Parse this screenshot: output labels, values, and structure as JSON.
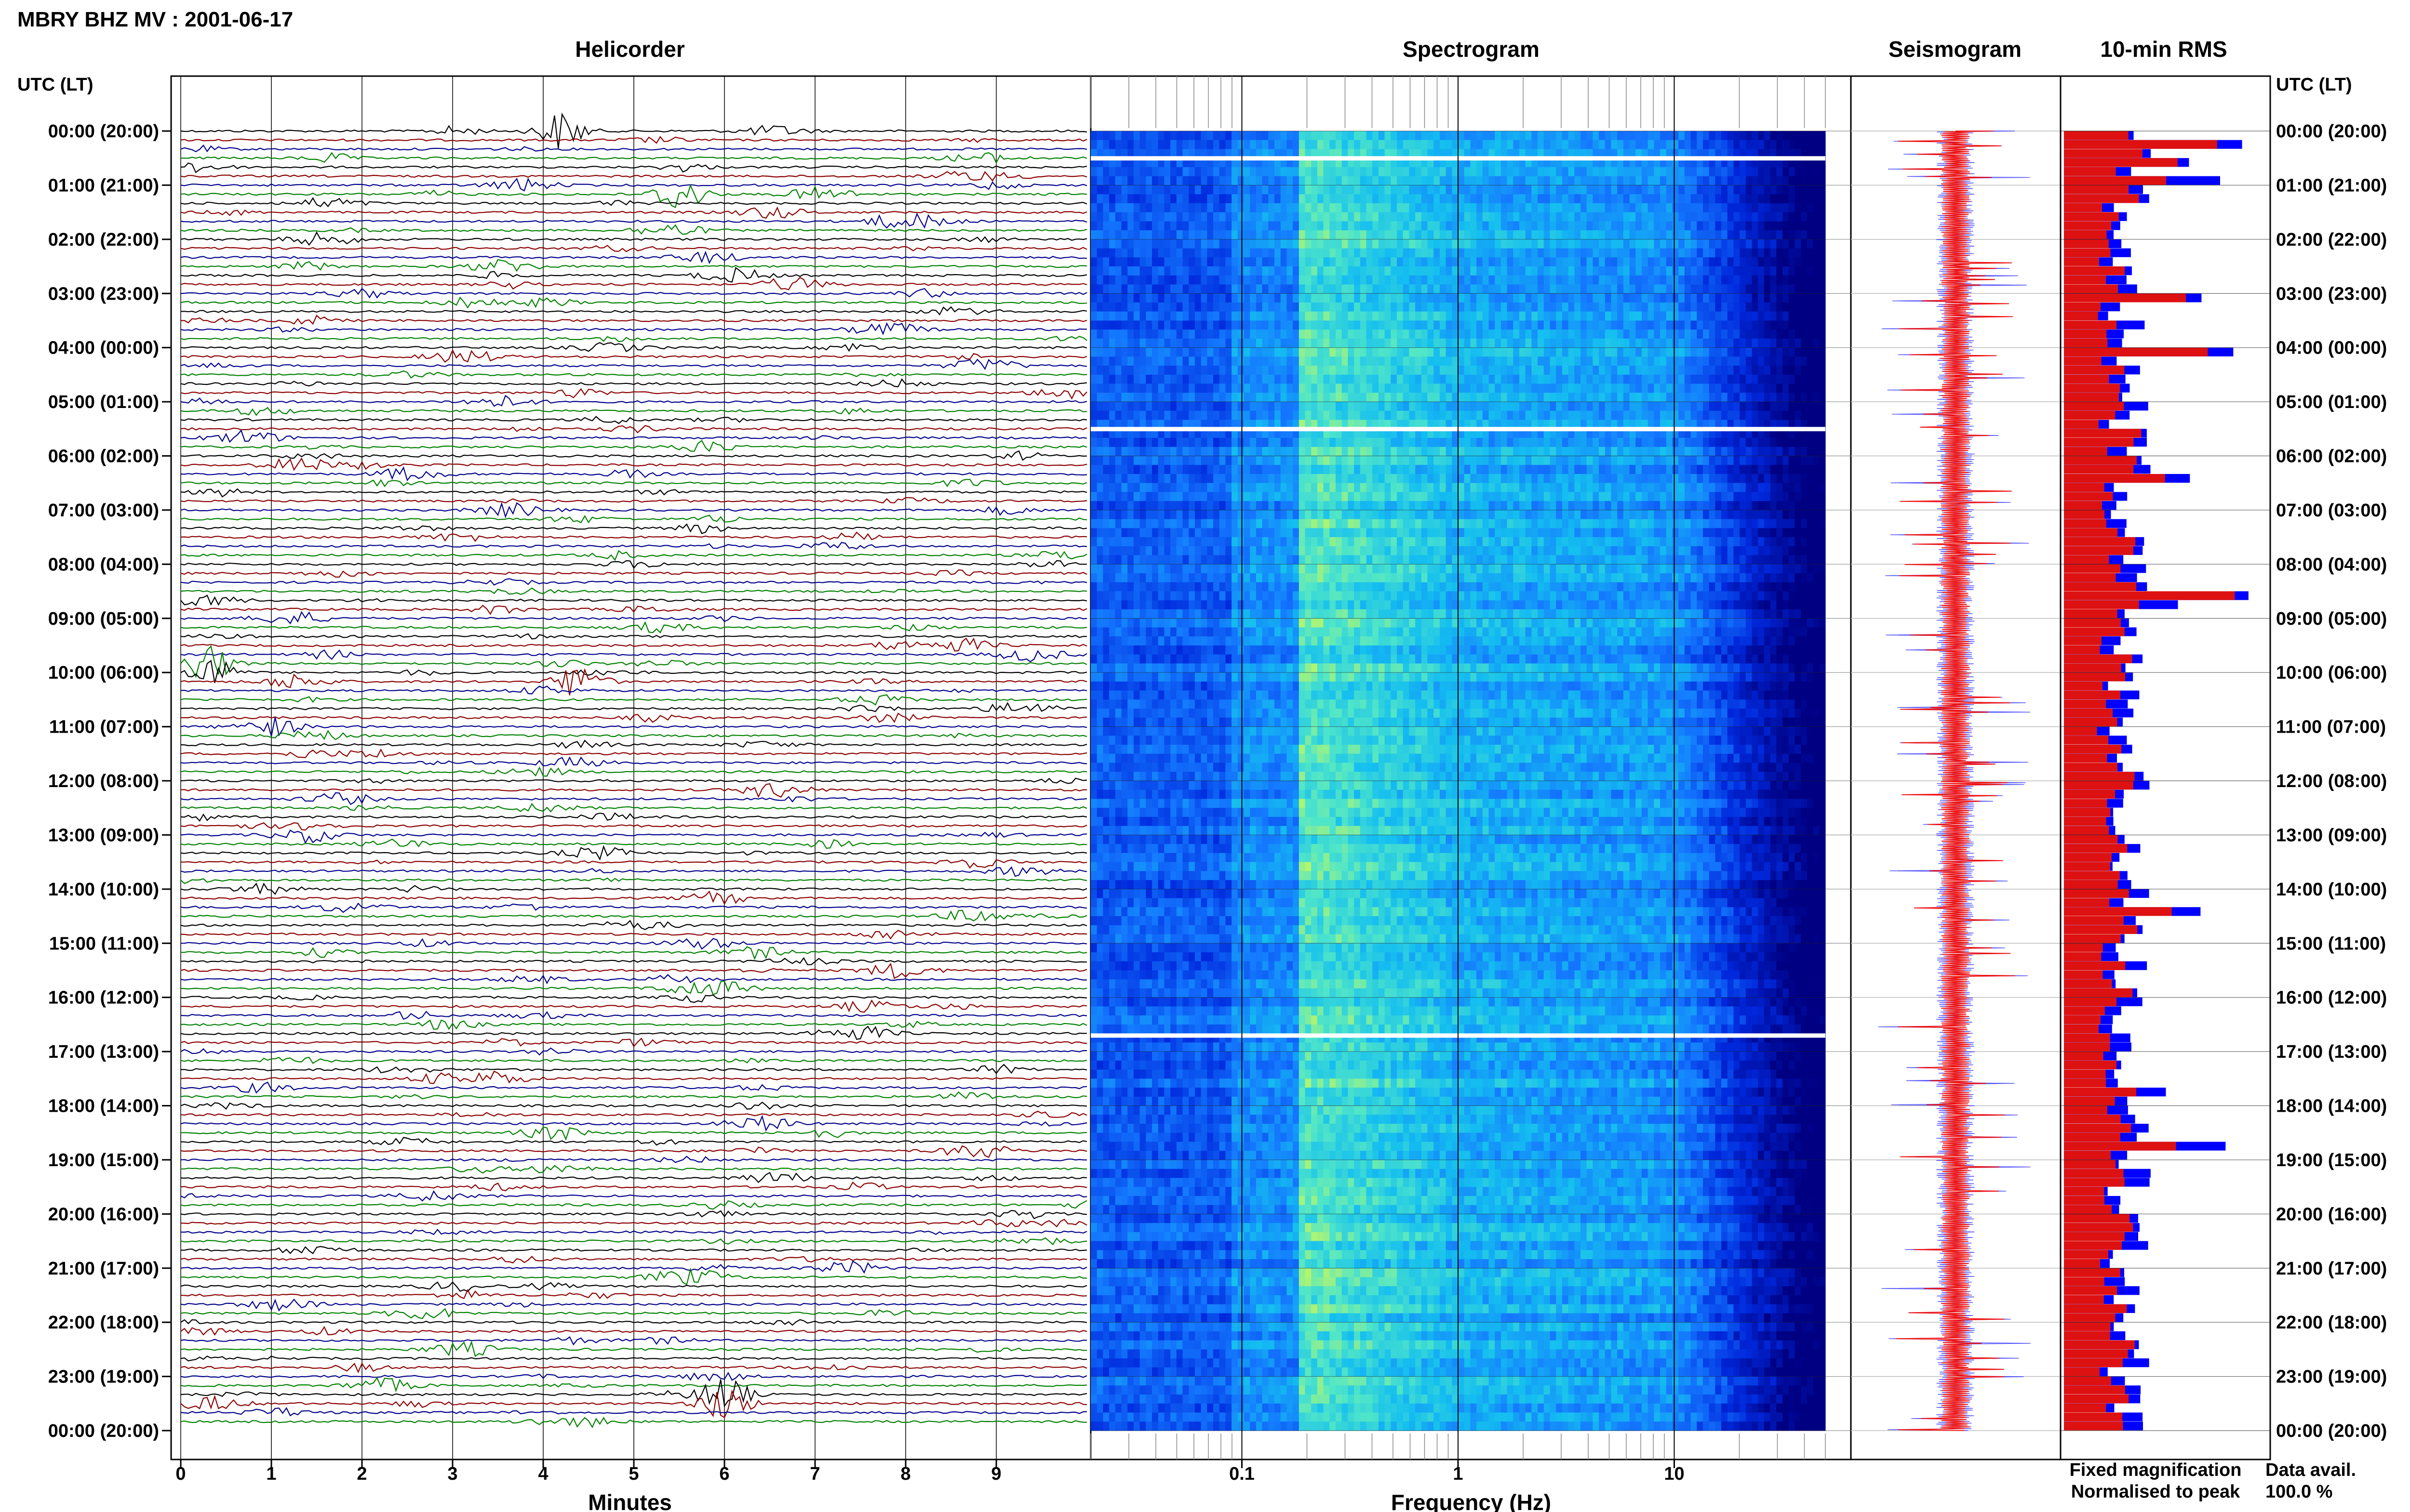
{
  "title": "MBRY BHZ MV : 2001-06-17",
  "panels": {
    "helicorder": "Helicorder",
    "spectrogram": "Spectrogram",
    "seismogram": "Seismogram",
    "rms": "10-min RMS"
  },
  "time_axis_label": "UTC (LT)",
  "time_labels": [
    "00:00 (20:00)",
    "01:00 (21:00)",
    "02:00 (22:00)",
    "03:00 (23:00)",
    "04:00 (00:00)",
    "05:00 (01:00)",
    "06:00 (02:00)",
    "07:00 (03:00)",
    "08:00 (04:00)",
    "09:00 (05:00)",
    "10:00 (06:00)",
    "11:00 (07:00)",
    "12:00 (08:00)",
    "13:00 (09:00)",
    "14:00 (10:00)",
    "15:00 (11:00)",
    "16:00 (12:00)",
    "17:00 (13:00)",
    "18:00 (14:00)",
    "19:00 (15:00)",
    "20:00 (16:00)",
    "21:00 (17:00)",
    "22:00 (18:00)",
    "23:00 (19:00)",
    "00:00 (20:00)"
  ],
  "helicorder_xlabel": "Minutes",
  "helicorder_ticks": [
    "0",
    "1",
    "2",
    "3",
    "4",
    "5",
    "6",
    "7",
    "8",
    "9"
  ],
  "spectrogram_xlabel": "Frequency (Hz)",
  "spectrogram_ticks": [
    "0.1",
    "1",
    "10"
  ],
  "legend": {
    "fixed": "Fixed magnification",
    "fixed_color": "#0000ff",
    "normalised": "Normalised to peak",
    "normalised_color": "#ff0000"
  },
  "data_avail_label": "Data avail.",
  "data_avail_value": "100.0 %",
  "colors": {
    "trace_cycle": [
      "#000000",
      "#8b0000",
      "#00008b",
      "#008000"
    ],
    "rms_fixed": "#0000ff",
    "rms_normalised": "#dd1111"
  },
  "chart_data": [
    {
      "type": "line",
      "panel": "Helicorder",
      "xlabel": "Minutes",
      "xlim": [
        0,
        10
      ],
      "ylabel": "UTC (LT)",
      "lines_per_hour": 6,
      "line_count": 144,
      "grid": true,
      "events": [
        {
          "hour": 0.0,
          "minute": 4.2,
          "line_color": "#00008b",
          "note": ""
        },
        {
          "hour": 1.2,
          "minute": 5.5,
          "line_color": "#00008b",
          "note": ""
        },
        {
          "hour": 9.9,
          "minute": 0.3,
          "line_color": "#000000",
          "note": ""
        },
        {
          "hour": 10.2,
          "minute": 4.4,
          "line_color": "#008000",
          "note": ""
        },
        {
          "hour": 23.4,
          "minute": 6.0,
          "line_color": "#8b0000",
          "note": ""
        }
      ]
    },
    {
      "type": "heatmap",
      "panel": "Spectrogram",
      "xlabel": "Frequency (Hz)",
      "x_scale": "log",
      "xlim": [
        0.02,
        50
      ],
      "ylim_hours": [
        0,
        24
      ],
      "gap_rows_hours": [
        0.5,
        5.5,
        16.7
      ],
      "dominant_band_hz": [
        0.2,
        0.9
      ]
    },
    {
      "type": "line",
      "panel": "Seismogram",
      "series": [
        {
          "name": "Fixed magnification"
        },
        {
          "name": "Normalised to peak"
        }
      ]
    },
    {
      "type": "bar",
      "panel": "10-min RMS",
      "orientation": "horizontal",
      "bins_per_hour": 6,
      "series": [
        {
          "name": "Fixed magnification",
          "color": "#0000ff"
        },
        {
          "name": "Normalised to peak",
          "color": "#dd1111"
        }
      ]
    }
  ]
}
